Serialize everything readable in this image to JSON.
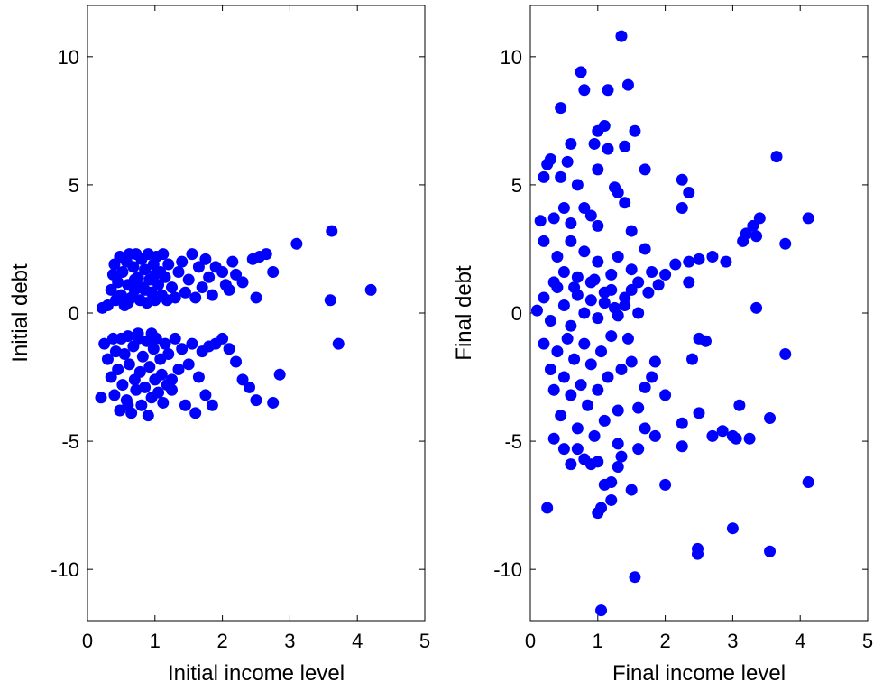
{
  "chart_data": [
    {
      "type": "scatter",
      "xlabel": "Initial income level",
      "ylabel": "Initial debt",
      "xlim": [
        0,
        5
      ],
      "ylim": [
        -12,
        12
      ],
      "xticks": [
        0,
        1,
        2,
        3,
        4,
        5
      ],
      "yticks": [
        -10,
        -5,
        0,
        5,
        10
      ],
      "xtick_labels": [
        "0",
        "1",
        "2",
        "3",
        "4",
        "5"
      ],
      "ytick_labels": [
        "-10",
        "-5",
        "0",
        "5",
        "10"
      ],
      "grid": false,
      "marker_color": "#0000ff",
      "points": [
        [
          0.22,
          0.2
        ],
        [
          0.3,
          0.3
        ],
        [
          0.35,
          0.9
        ],
        [
          0.38,
          1.5
        ],
        [
          0.4,
          1.9
        ],
        [
          0.42,
          0.5
        ],
        [
          0.45,
          1.2
        ],
        [
          0.48,
          2.2
        ],
        [
          0.5,
          0.7
        ],
        [
          0.52,
          1.6
        ],
        [
          0.55,
          0.3
        ],
        [
          0.58,
          2.0
        ],
        [
          0.6,
          1.1
        ],
        [
          0.62,
          2.3
        ],
        [
          0.65,
          0.6
        ],
        [
          0.68,
          1.8
        ],
        [
          0.7,
          0.9
        ],
        [
          0.72,
          2.3
        ],
        [
          0.75,
          1.4
        ],
        [
          0.78,
          0.5
        ],
        [
          0.8,
          2.1
        ],
        [
          0.82,
          1.0
        ],
        [
          0.85,
          1.7
        ],
        [
          0.88,
          0.4
        ],
        [
          0.9,
          2.3
        ],
        [
          0.92,
          1.3
        ],
        [
          0.95,
          0.8
        ],
        [
          0.98,
          1.9
        ],
        [
          1.0,
          0.5
        ],
        [
          1.02,
          2.2
        ],
        [
          1.05,
          1.1
        ],
        [
          1.08,
          1.6
        ],
        [
          1.1,
          0.7
        ],
        [
          1.12,
          2.3
        ],
        [
          1.15,
          1.4
        ],
        [
          1.18,
          0.5
        ],
        [
          1.2,
          1.9
        ],
        [
          1.25,
          1.0
        ],
        [
          1.3,
          0.6
        ],
        [
          1.35,
          1.6
        ],
        [
          1.4,
          2.0
        ],
        [
          1.45,
          0.8
        ],
        [
          1.5,
          1.3
        ],
        [
          1.55,
          2.3
        ],
        [
          1.6,
          0.6
        ],
        [
          1.65,
          1.8
        ],
        [
          1.7,
          1.0
        ],
        [
          1.75,
          2.1
        ],
        [
          1.8,
          1.4
        ],
        [
          1.85,
          0.7
        ],
        [
          1.9,
          1.8
        ],
        [
          2.0,
          1.6
        ],
        [
          2.05,
          1.1
        ],
        [
          2.1,
          0.9
        ],
        [
          2.15,
          2.0
        ],
        [
          2.2,
          1.5
        ],
        [
          2.3,
          1.2
        ],
        [
          2.45,
          2.1
        ],
        [
          2.55,
          2.2
        ],
        [
          2.65,
          2.3
        ],
        [
          2.75,
          1.6
        ],
        [
          2.5,
          0.6
        ],
        [
          3.1,
          2.7
        ],
        [
          3.62,
          3.2
        ],
        [
          3.6,
          0.5
        ],
        [
          4.2,
          0.9
        ],
        [
          0.6,
          0.4
        ],
        [
          0.7,
          1.3
        ],
        [
          0.85,
          0.9
        ],
        [
          1.0,
          1.5
        ],
        [
          0.25,
          -1.2
        ],
        [
          0.3,
          -1.8
        ],
        [
          0.35,
          -2.5
        ],
        [
          0.38,
          -1.0
        ],
        [
          0.4,
          -3.2
        ],
        [
          0.42,
          -1.5
        ],
        [
          0.45,
          -2.2
        ],
        [
          0.48,
          -3.8
        ],
        [
          0.5,
          -1.0
        ],
        [
          0.52,
          -2.8
        ],
        [
          0.55,
          -1.6
        ],
        [
          0.58,
          -3.4
        ],
        [
          0.6,
          -0.9
        ],
        [
          0.62,
          -2.0
        ],
        [
          0.65,
          -3.9
        ],
        [
          0.68,
          -1.3
        ],
        [
          0.7,
          -2.6
        ],
        [
          0.72,
          -3.0
        ],
        [
          0.75,
          -1.0
        ],
        [
          0.78,
          -2.3
        ],
        [
          0.8,
          -3.6
        ],
        [
          0.82,
          -1.7
        ],
        [
          0.85,
          -2.9
        ],
        [
          0.88,
          -1.1
        ],
        [
          0.9,
          -4.0
        ],
        [
          0.92,
          -2.1
        ],
        [
          0.95,
          -3.3
        ],
        [
          0.98,
          -1.4
        ],
        [
          1.0,
          -2.6
        ],
        [
          1.02,
          -1.0
        ],
        [
          1.05,
          -3.1
        ],
        [
          1.08,
          -1.8
        ],
        [
          1.1,
          -2.4
        ],
        [
          1.12,
          -3.5
        ],
        [
          1.15,
          -1.2
        ],
        [
          1.18,
          -2.8
        ],
        [
          1.2,
          -1.6
        ],
        [
          1.25,
          -3.0
        ],
        [
          1.3,
          -1.0
        ],
        [
          1.35,
          -2.2
        ],
        [
          1.4,
          -1.4
        ],
        [
          1.45,
          -3.6
        ],
        [
          1.5,
          -2.0
        ],
        [
          1.55,
          -1.2
        ],
        [
          1.6,
          -3.9
        ],
        [
          1.65,
          -2.5
        ],
        [
          1.7,
          -1.5
        ],
        [
          1.75,
          -3.2
        ],
        [
          1.8,
          -1.3
        ],
        [
          1.85,
          -3.6
        ],
        [
          1.9,
          -1.2
        ],
        [
          2.0,
          -1.0
        ],
        [
          2.1,
          -1.4
        ],
        [
          2.2,
          -1.9
        ],
        [
          2.3,
          -2.6
        ],
        [
          2.4,
          -2.9
        ],
        [
          2.5,
          -3.4
        ],
        [
          2.75,
          -3.5
        ],
        [
          2.85,
          -2.4
        ],
        [
          3.72,
          -1.2
        ],
        [
          0.2,
          -3.3
        ],
        [
          0.6,
          -3.6
        ],
        [
          0.75,
          -0.8
        ],
        [
          0.95,
          -0.8
        ],
        [
          1.25,
          -2.6
        ]
      ]
    },
    {
      "type": "scatter",
      "xlabel": "Final income level",
      "ylabel": "Final debt",
      "xlim": [
        0,
        5
      ],
      "ylim": [
        -12,
        12
      ],
      "xticks": [
        0,
        1,
        2,
        3,
        4,
        5
      ],
      "yticks": [
        -10,
        -5,
        0,
        5,
        10
      ],
      "xtick_labels": [
        "0",
        "1",
        "2",
        "3",
        "4",
        "5"
      ],
      "ytick_labels": [
        "-10",
        "-5",
        "0",
        "5",
        "10"
      ],
      "grid": false,
      "marker_color": "#0000ff",
      "points": [
        [
          1.35,
          10.8
        ],
        [
          0.75,
          9.4
        ],
        [
          1.45,
          8.9
        ],
        [
          0.8,
          8.7
        ],
        [
          1.15,
          8.7
        ],
        [
          0.45,
          8.0
        ],
        [
          1.1,
          7.3
        ],
        [
          1.0,
          7.1
        ],
        [
          1.55,
          7.1
        ],
        [
          0.95,
          6.6
        ],
        [
          1.15,
          6.4
        ],
        [
          1.4,
          6.5
        ],
        [
          0.6,
          6.6
        ],
        [
          3.65,
          6.1
        ],
        [
          0.3,
          6.0
        ],
        [
          0.55,
          5.9
        ],
        [
          0.25,
          5.8
        ],
        [
          1.0,
          5.6
        ],
        [
          1.7,
          5.6
        ],
        [
          0.45,
          5.3
        ],
        [
          0.2,
          5.3
        ],
        [
          0.7,
          5.0
        ],
        [
          1.25,
          4.9
        ],
        [
          2.25,
          5.2
        ],
        [
          2.35,
          4.7
        ],
        [
          1.3,
          4.7
        ],
        [
          0.5,
          4.1
        ],
        [
          0.8,
          4.1
        ],
        [
          1.4,
          4.3
        ],
        [
          0.9,
          3.8
        ],
        [
          2.25,
          4.1
        ],
        [
          0.35,
          3.7
        ],
        [
          0.15,
          3.6
        ],
        [
          0.6,
          3.5
        ],
        [
          1.0,
          3.4
        ],
        [
          1.5,
          3.2
        ],
        [
          3.4,
          3.7
        ],
        [
          3.3,
          3.4
        ],
        [
          3.2,
          3.1
        ],
        [
          3.15,
          2.8
        ],
        [
          3.78,
          2.7
        ],
        [
          4.12,
          3.7
        ],
        [
          3.35,
          3.0
        ],
        [
          0.2,
          2.8
        ],
        [
          0.4,
          2.2
        ],
        [
          0.5,
          1.6
        ],
        [
          0.6,
          2.8
        ],
        [
          0.7,
          1.4
        ],
        [
          0.8,
          2.4
        ],
        [
          0.9,
          1.2
        ],
        [
          1.0,
          2.0
        ],
        [
          1.1,
          0.8
        ],
        [
          1.2,
          1.5
        ],
        [
          1.3,
          2.2
        ],
        [
          1.4,
          0.6
        ],
        [
          1.5,
          1.7
        ],
        [
          1.6,
          1.2
        ],
        [
          1.7,
          2.5
        ],
        [
          1.8,
          1.6
        ],
        [
          1.9,
          1.1
        ],
        [
          2.0,
          1.5
        ],
        [
          2.15,
          1.9
        ],
        [
          2.35,
          2.0
        ],
        [
          2.5,
          2.1
        ],
        [
          2.7,
          2.2
        ],
        [
          2.9,
          2.0
        ],
        [
          2.35,
          1.2
        ],
        [
          0.1,
          0.1
        ],
        [
          0.2,
          0.6
        ],
        [
          0.3,
          -0.3
        ],
        [
          0.4,
          1.0
        ],
        [
          0.5,
          0.3
        ],
        [
          0.6,
          -0.5
        ],
        [
          0.7,
          0.7
        ],
        [
          0.8,
          0.0
        ],
        [
          0.9,
          0.5
        ],
        [
          1.0,
          -0.2
        ],
        [
          1.1,
          0.4
        ],
        [
          1.2,
          0.9
        ],
        [
          1.3,
          -0.1
        ],
        [
          1.4,
          0.3
        ],
        [
          1.5,
          0.9
        ],
        [
          1.6,
          0.0
        ],
        [
          0.35,
          1.2
        ],
        [
          0.65,
          1.0
        ],
        [
          0.95,
          1.3
        ],
        [
          1.25,
          0.2
        ],
        [
          1.75,
          0.8
        ],
        [
          3.35,
          0.2
        ],
        [
          0.2,
          -1.2
        ],
        [
          0.3,
          -2.2
        ],
        [
          0.35,
          -3.0
        ],
        [
          0.4,
          -1.5
        ],
        [
          0.45,
          -4.0
        ],
        [
          0.5,
          -2.5
        ],
        [
          0.55,
          -1.0
        ],
        [
          0.6,
          -3.2
        ],
        [
          0.65,
          -1.8
        ],
        [
          0.7,
          -4.5
        ],
        [
          0.75,
          -2.8
        ],
        [
          0.8,
          -1.2
        ],
        [
          0.85,
          -3.6
        ],
        [
          0.9,
          -2.0
        ],
        [
          0.95,
          -4.8
        ],
        [
          1.0,
          -3.0
        ],
        [
          1.05,
          -1.5
        ],
        [
          1.1,
          -4.2
        ],
        [
          1.15,
          -2.5
        ],
        [
          1.2,
          -0.9
        ],
        [
          1.3,
          -3.8
        ],
        [
          1.35,
          -2.2
        ],
        [
          1.45,
          -1.0
        ],
        [
          1.5,
          -1.9
        ],
        [
          1.6,
          -3.7
        ],
        [
          1.7,
          -2.9
        ],
        [
          1.8,
          -2.5
        ],
        [
          1.85,
          -1.9
        ],
        [
          2.0,
          -3.2
        ],
        [
          1.6,
          -5.3
        ],
        [
          1.7,
          -4.5
        ],
        [
          1.85,
          -4.8
        ],
        [
          2.25,
          -4.3
        ],
        [
          2.4,
          -1.8
        ],
        [
          2.5,
          -1.0
        ],
        [
          2.6,
          -1.1
        ],
        [
          2.5,
          -3.9
        ],
        [
          2.7,
          -4.8
        ],
        [
          2.85,
          -4.6
        ],
        [
          3.0,
          -4.8
        ],
        [
          3.05,
          -4.9
        ],
        [
          3.25,
          -4.9
        ],
        [
          3.1,
          -3.6
        ],
        [
          3.55,
          -4.1
        ],
        [
          3.78,
          -1.6
        ],
        [
          2.25,
          -5.2
        ],
        [
          0.35,
          -4.9
        ],
        [
          0.5,
          -5.3
        ],
        [
          0.6,
          -5.9
        ],
        [
          0.7,
          -5.3
        ],
        [
          0.8,
          -5.7
        ],
        [
          0.9,
          -5.9
        ],
        [
          1.0,
          -5.8
        ],
        [
          1.1,
          -6.7
        ],
        [
          1.2,
          -6.6
        ],
        [
          1.3,
          -6.0
        ],
        [
          1.35,
          -5.6
        ],
        [
          1.5,
          -6.9
        ],
        [
          1.3,
          -5.1
        ],
        [
          1.05,
          -7.6
        ],
        [
          1.0,
          -7.8
        ],
        [
          1.2,
          -7.3
        ],
        [
          0.25,
          -7.6
        ],
        [
          2.0,
          -6.7
        ],
        [
          4.12,
          -6.6
        ],
        [
          3.0,
          -8.4
        ],
        [
          2.48,
          -9.2
        ],
        [
          2.48,
          -9.4
        ],
        [
          3.55,
          -9.3
        ],
        [
          1.55,
          -10.3
        ],
        [
          1.05,
          -11.6
        ]
      ]
    }
  ]
}
